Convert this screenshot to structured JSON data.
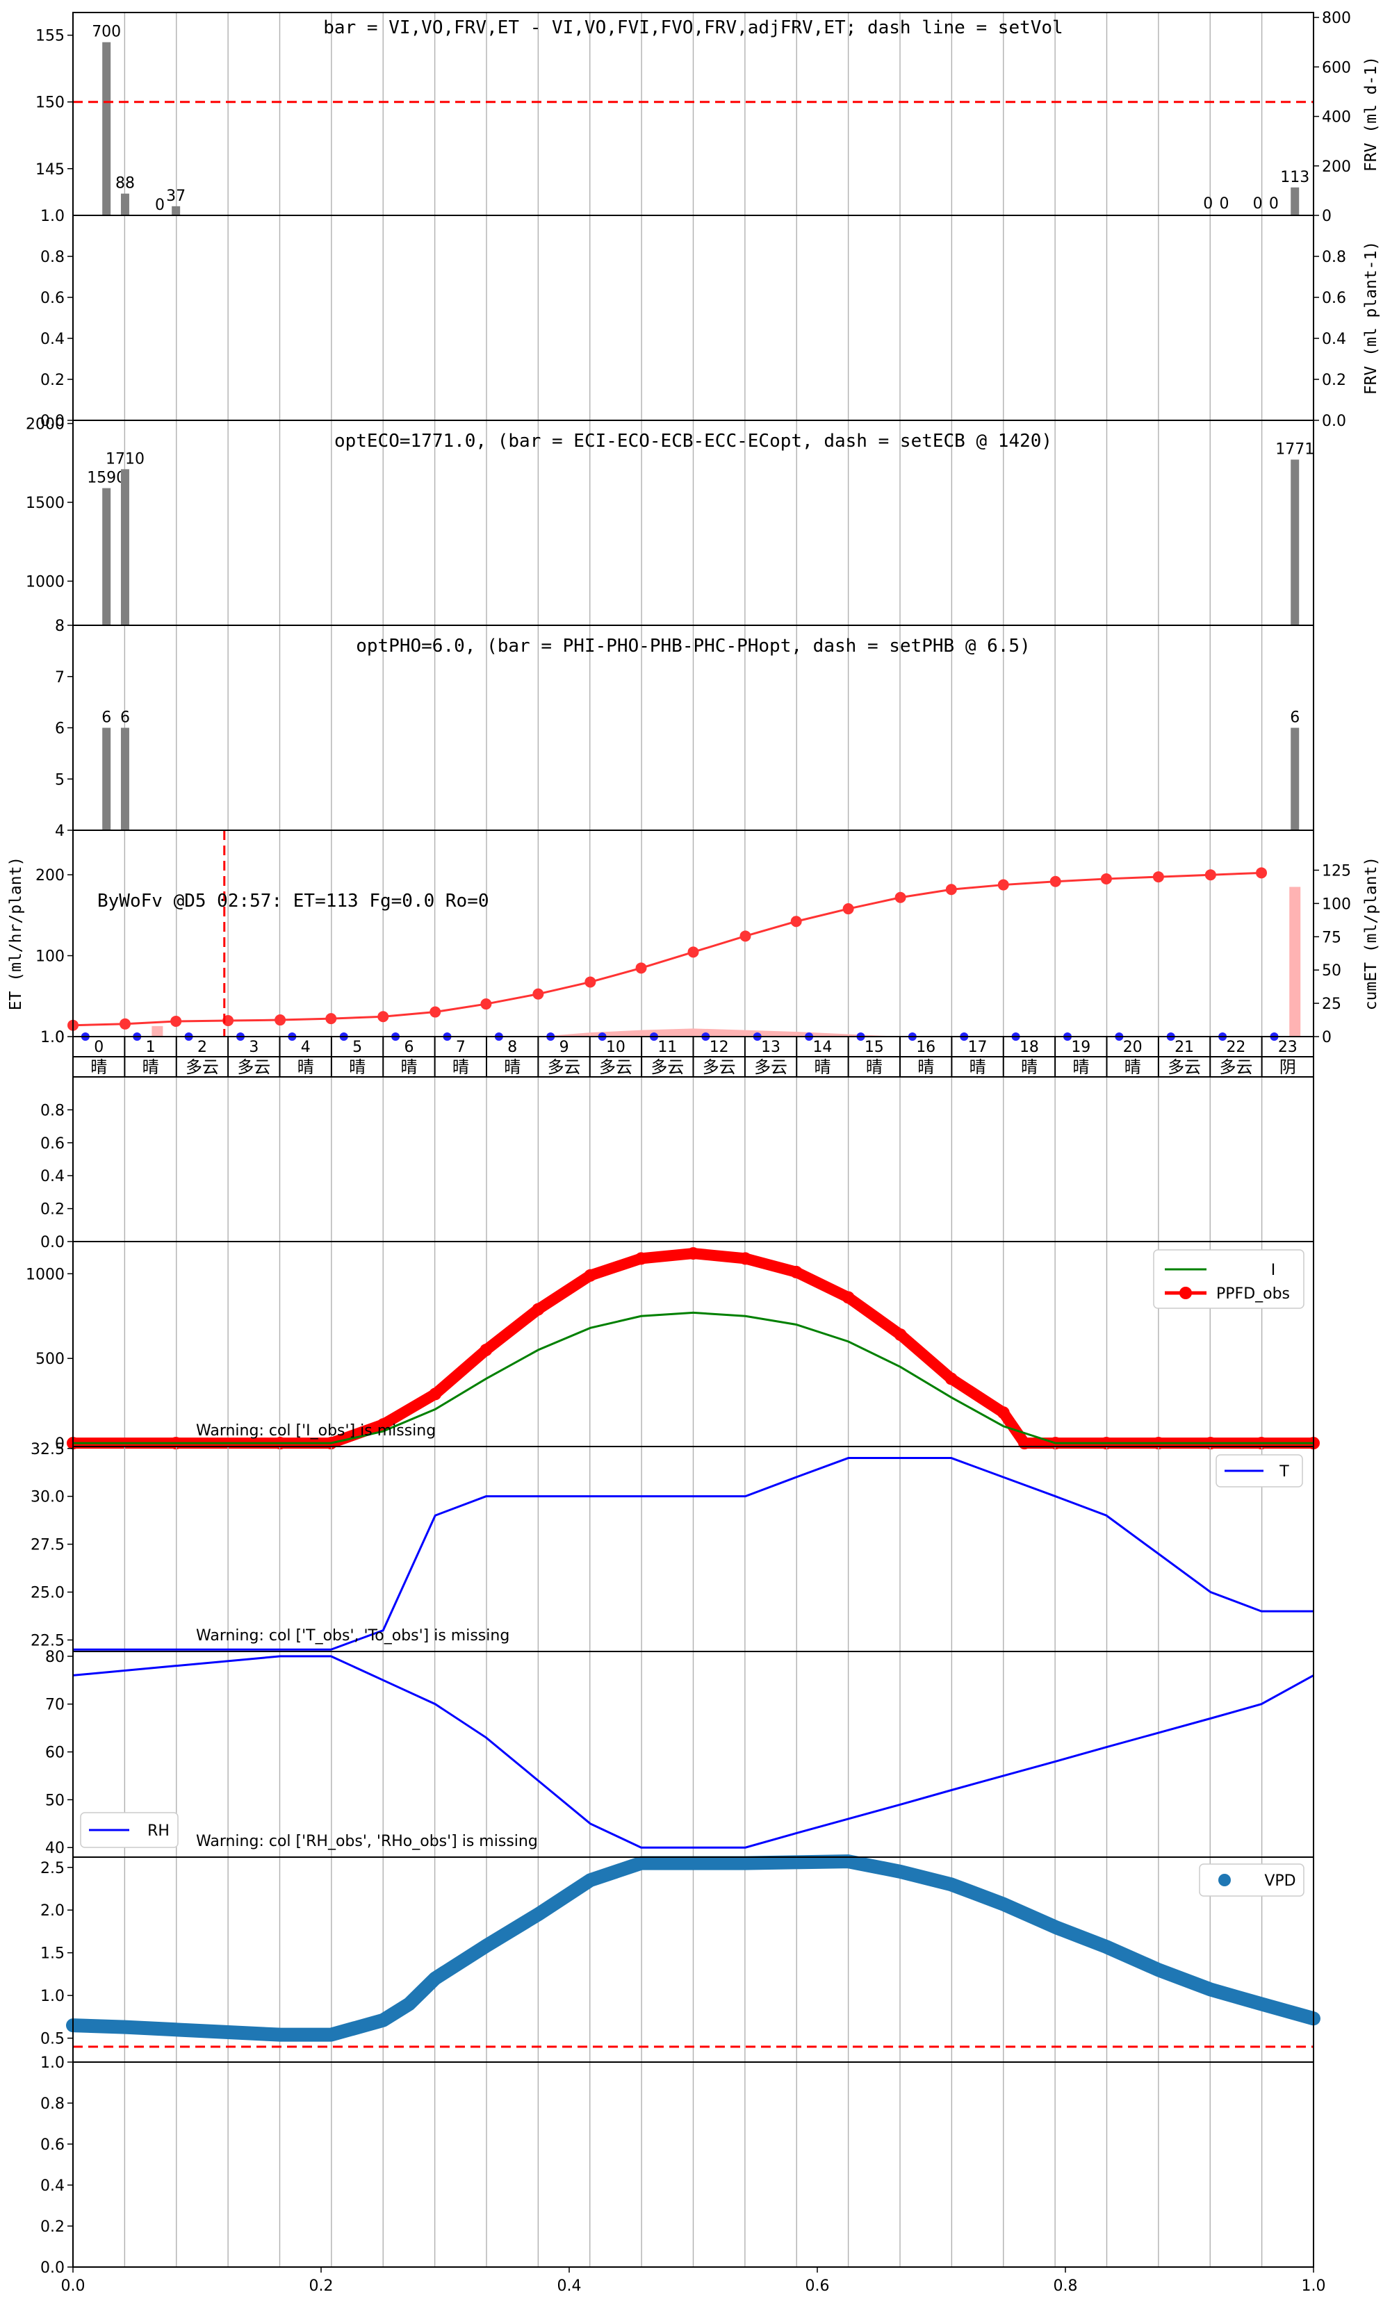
{
  "colors": {
    "bar_gray": "#808080",
    "dash_red": "#ff0000",
    "et_red": "#ff3333",
    "et_bar_pink": "#ffb3b3",
    "blue_dot": "#2222ff",
    "green": "#008000",
    "ppfd_red": "#ff0000",
    "t_blue": "#0000ff",
    "vpd_blue": "#1f77b4",
    "grid": "#b0b0b0"
  },
  "chart_data": [
    {
      "id": "vol",
      "type": "bar",
      "title": "bar = VI,VO,FRV,ET - VI,VO,FVI,FVO,FRV,adjFRV,ET; dash line = setVol",
      "ylim": [
        141.5,
        156.7
      ],
      "yticks": [
        "145",
        "150",
        "155"
      ],
      "ylim_bottom_label": "1.0",
      "right_ylabel": "FRV (ml d-1)",
      "right_yticks": [
        "0",
        "200",
        "400",
        "600",
        "800"
      ],
      "right_ylim": [
        0,
        820
      ],
      "setVol": 150,
      "bars": [
        {
          "x": 0.027,
          "value": 700,
          "label": "700"
        },
        {
          "x": 0.042,
          "value": 88,
          "label": "88"
        },
        {
          "x": 0.07,
          "value": 0,
          "label": "0"
        },
        {
          "x": 0.083,
          "value": 37,
          "label": "37"
        },
        {
          "x": 0.985,
          "value": 113,
          "label": "113"
        }
      ],
      "zero_labels": [
        {
          "x": 0.915,
          "label": "0"
        },
        {
          "x": 0.928,
          "label": "0"
        },
        {
          "x": 0.955,
          "label": "0"
        },
        {
          "x": 0.968,
          "label": "0"
        }
      ]
    },
    {
      "id": "frv",
      "type": "bar",
      "yticks": [
        "0.0",
        "0.2",
        "0.4",
        "0.6",
        "0.8"
      ],
      "right_ylabel": "FRV (ml plant-1)",
      "right_yticks": [
        "0.0",
        "0.2",
        "0.4",
        "0.6",
        "0.8"
      ]
    },
    {
      "id": "ec",
      "type": "bar",
      "title": "optECO=1771.0, (bar = ECI-ECO-ECB-ECC-ECopt, dash = setECB @ 1420)",
      "ylim": [
        720,
        2020
      ],
      "yticks": [
        "1000",
        "1500",
        "2000"
      ],
      "setECB": 1420,
      "bars": [
        {
          "x": 0.027,
          "value": 1590,
          "label": "1590"
        },
        {
          "x": 0.042,
          "value": 1710,
          "label": "1710"
        },
        {
          "x": 0.985,
          "value": 1771,
          "label": "1771"
        }
      ]
    },
    {
      "id": "ph",
      "type": "bar",
      "title": "optPHO=6.0, (bar = PHI-PHO-PHB-PHC-PHopt, dash = setPHB @ 6.5)",
      "ylim": [
        4,
        8
      ],
      "yticks": [
        "4",
        "5",
        "6",
        "7",
        "8"
      ],
      "setPHB": 6.5,
      "bars": [
        {
          "x": 0.027,
          "value": 6,
          "label": "6"
        },
        {
          "x": 0.042,
          "value": 6,
          "label": "6"
        },
        {
          "x": 0.985,
          "value": 6,
          "label": "6"
        }
      ]
    },
    {
      "id": "et",
      "type": "line",
      "annotation": "ByWoFv @D5 02:57: ET=113 Fg=0.0 Ro=0",
      "ylabel": "ET (ml/hr/plant)",
      "right_ylabel": "cumET (ml/plant)",
      "ylim": [
        0,
        255
      ],
      "yticks": [
        "0",
        "100",
        "200"
      ],
      "ylim_bottom_label": "1.0",
      "right_ylim": [
        0,
        155
      ],
      "right_yticks": [
        "0",
        "25",
        "50",
        "75",
        "100",
        "125"
      ],
      "vline_x": 0.122,
      "hours": [
        "0",
        "1",
        "2",
        "3",
        "4",
        "5",
        "6",
        "7",
        "8",
        "9",
        "10",
        "11",
        "12",
        "13",
        "14",
        "15",
        "16",
        "17",
        "18",
        "19",
        "20",
        "21",
        "22",
        "23"
      ],
      "weather": [
        "晴",
        "晴",
        "多云",
        "多云",
        "晴",
        "晴",
        "晴",
        "晴",
        "晴",
        "多云",
        "多云",
        "多云",
        "多云",
        "多云",
        "晴",
        "晴",
        "晴",
        "晴",
        "晴",
        "晴",
        "晴",
        "多云",
        "多云",
        "阴"
      ],
      "cumET_x": [
        0.0,
        0.042,
        0.083,
        0.125,
        0.167,
        0.208,
        0.25,
        0.292,
        0.333,
        0.375,
        0.417,
        0.458,
        0.5,
        0.542,
        0.583,
        0.625,
        0.667,
        0.708,
        0.75,
        0.792,
        0.833,
        0.875,
        0.917,
        0.958
      ],
      "cumET": [
        8.5,
        9.5,
        11.5,
        12.0,
        12.5,
        13.5,
        15.0,
        18.5,
        24.5,
        32.0,
        41.0,
        51.5,
        63.5,
        75.5,
        86.5,
        96.0,
        104.5,
        110.5,
        114.0,
        116.5,
        118.5,
        120.0,
        121.5,
        123.0
      ],
      "et_bars_x": [
        0.068,
        0.985
      ],
      "et_bars": [
        13,
        185
      ]
    },
    {
      "id": "blank",
      "type": "line",
      "yticks": [
        "0.0",
        "0.2",
        "0.4",
        "0.6",
        "0.8"
      ]
    },
    {
      "id": "ppfd",
      "type": "line",
      "ylim": [
        -20,
        1190
      ],
      "yticks": [
        "0",
        "500",
        "1000"
      ],
      "warning": "Warning: col ['I_obs'] is missing",
      "series": [
        {
          "name": "I",
          "x": [
            0,
            0.083,
            0.167,
            0.208,
            0.25,
            0.292,
            0.333,
            0.375,
            0.417,
            0.458,
            0.5,
            0.542,
            0.583,
            0.625,
            0.667,
            0.708,
            0.75,
            0.792,
            0.833,
            0.875,
            0.917,
            0.958,
            1.0
          ],
          "values": [
            0,
            0,
            0,
            0,
            70,
            200,
            380,
            550,
            680,
            750,
            770,
            750,
            700,
            600,
            450,
            270,
            100,
            0,
            0,
            0,
            0,
            0,
            0
          ]
        },
        {
          "name": "PPFD_obs",
          "x": [
            0,
            0.083,
            0.167,
            0.208,
            0.25,
            0.292,
            0.333,
            0.375,
            0.417,
            0.458,
            0.5,
            0.542,
            0.583,
            0.625,
            0.667,
            0.708,
            0.75,
            0.767,
            0.792,
            0.833,
            0.875,
            0.917,
            0.958,
            1.0
          ],
          "values": [
            0,
            0,
            0,
            0,
            110,
            290,
            550,
            790,
            990,
            1090,
            1120,
            1090,
            1010,
            860,
            640,
            380,
            180,
            0,
            0,
            0,
            0,
            0,
            0,
            0
          ]
        }
      ]
    },
    {
      "id": "temp",
      "type": "line",
      "ylim": [
        21.9,
        32.6
      ],
      "yticks": [
        "22.5",
        "25.0",
        "27.5",
        "30.0",
        "32.5"
      ],
      "warning": "Warning: col ['T_obs', 'To_obs'] is missing",
      "series": [
        {
          "name": "T",
          "x": [
            0,
            0.083,
            0.167,
            0.208,
            0.25,
            0.292,
            0.333,
            0.375,
            0.417,
            0.458,
            0.5,
            0.542,
            0.583,
            0.625,
            0.667,
            0.708,
            0.75,
            0.792,
            0.833,
            0.875,
            0.917,
            0.958,
            1.0
          ],
          "values": [
            22,
            22,
            22,
            22,
            23,
            29,
            30,
            30,
            30,
            30,
            30,
            30,
            31,
            32,
            32,
            32,
            31,
            30,
            29,
            27,
            25,
            24,
            24
          ]
        }
      ]
    },
    {
      "id": "rh",
      "type": "line",
      "ylim": [
        38,
        81
      ],
      "yticks": [
        "40",
        "50",
        "60",
        "70",
        "80"
      ],
      "warning": "Warning: col ['RH_obs', 'RHo_obs'] is missing",
      "series": [
        {
          "name": "RH",
          "x": [
            0,
            0.083,
            0.167,
            0.208,
            0.25,
            0.292,
            0.333,
            0.375,
            0.417,
            0.458,
            0.5,
            0.542,
            0.583,
            0.625,
            0.667,
            0.708,
            0.75,
            0.792,
            0.833,
            0.875,
            0.917,
            0.958,
            1.0
          ],
          "values": [
            76,
            78,
            80,
            80,
            75,
            70,
            63,
            54,
            45,
            40,
            40,
            40,
            43,
            46,
            49,
            52,
            55,
            58,
            61,
            64,
            67,
            70,
            76
          ]
        }
      ]
    },
    {
      "id": "vpd",
      "type": "line",
      "ylim": [
        0.22,
        2.62
      ],
      "yticks": [
        "0.5",
        "1.0",
        "1.5",
        "2.0",
        "2.5"
      ],
      "threshold": 0.4,
      "series": [
        {
          "name": "VPD",
          "x": [
            0,
            0.042,
            0.083,
            0.125,
            0.167,
            0.208,
            0.25,
            0.271,
            0.292,
            0.333,
            0.375,
            0.417,
            0.458,
            0.5,
            0.542,
            0.583,
            0.625,
            0.667,
            0.708,
            0.75,
            0.792,
            0.833,
            0.875,
            0.917,
            0.958,
            1.0
          ],
          "values": [
            0.65,
            0.63,
            0.6,
            0.57,
            0.54,
            0.54,
            0.71,
            0.9,
            1.2,
            1.58,
            1.95,
            2.35,
            2.55,
            2.55,
            2.55,
            2.56,
            2.57,
            2.45,
            2.3,
            2.07,
            1.8,
            1.57,
            1.3,
            1.07,
            0.9,
            0.73
          ]
        }
      ]
    },
    {
      "id": "bottom",
      "type": "line",
      "yticks": [
        "0.0",
        "0.2",
        "0.4",
        "0.6",
        "0.8",
        "1.0"
      ],
      "xticks": [
        "0.0",
        "0.2",
        "0.4",
        "0.6",
        "0.8",
        "1.0"
      ]
    }
  ]
}
